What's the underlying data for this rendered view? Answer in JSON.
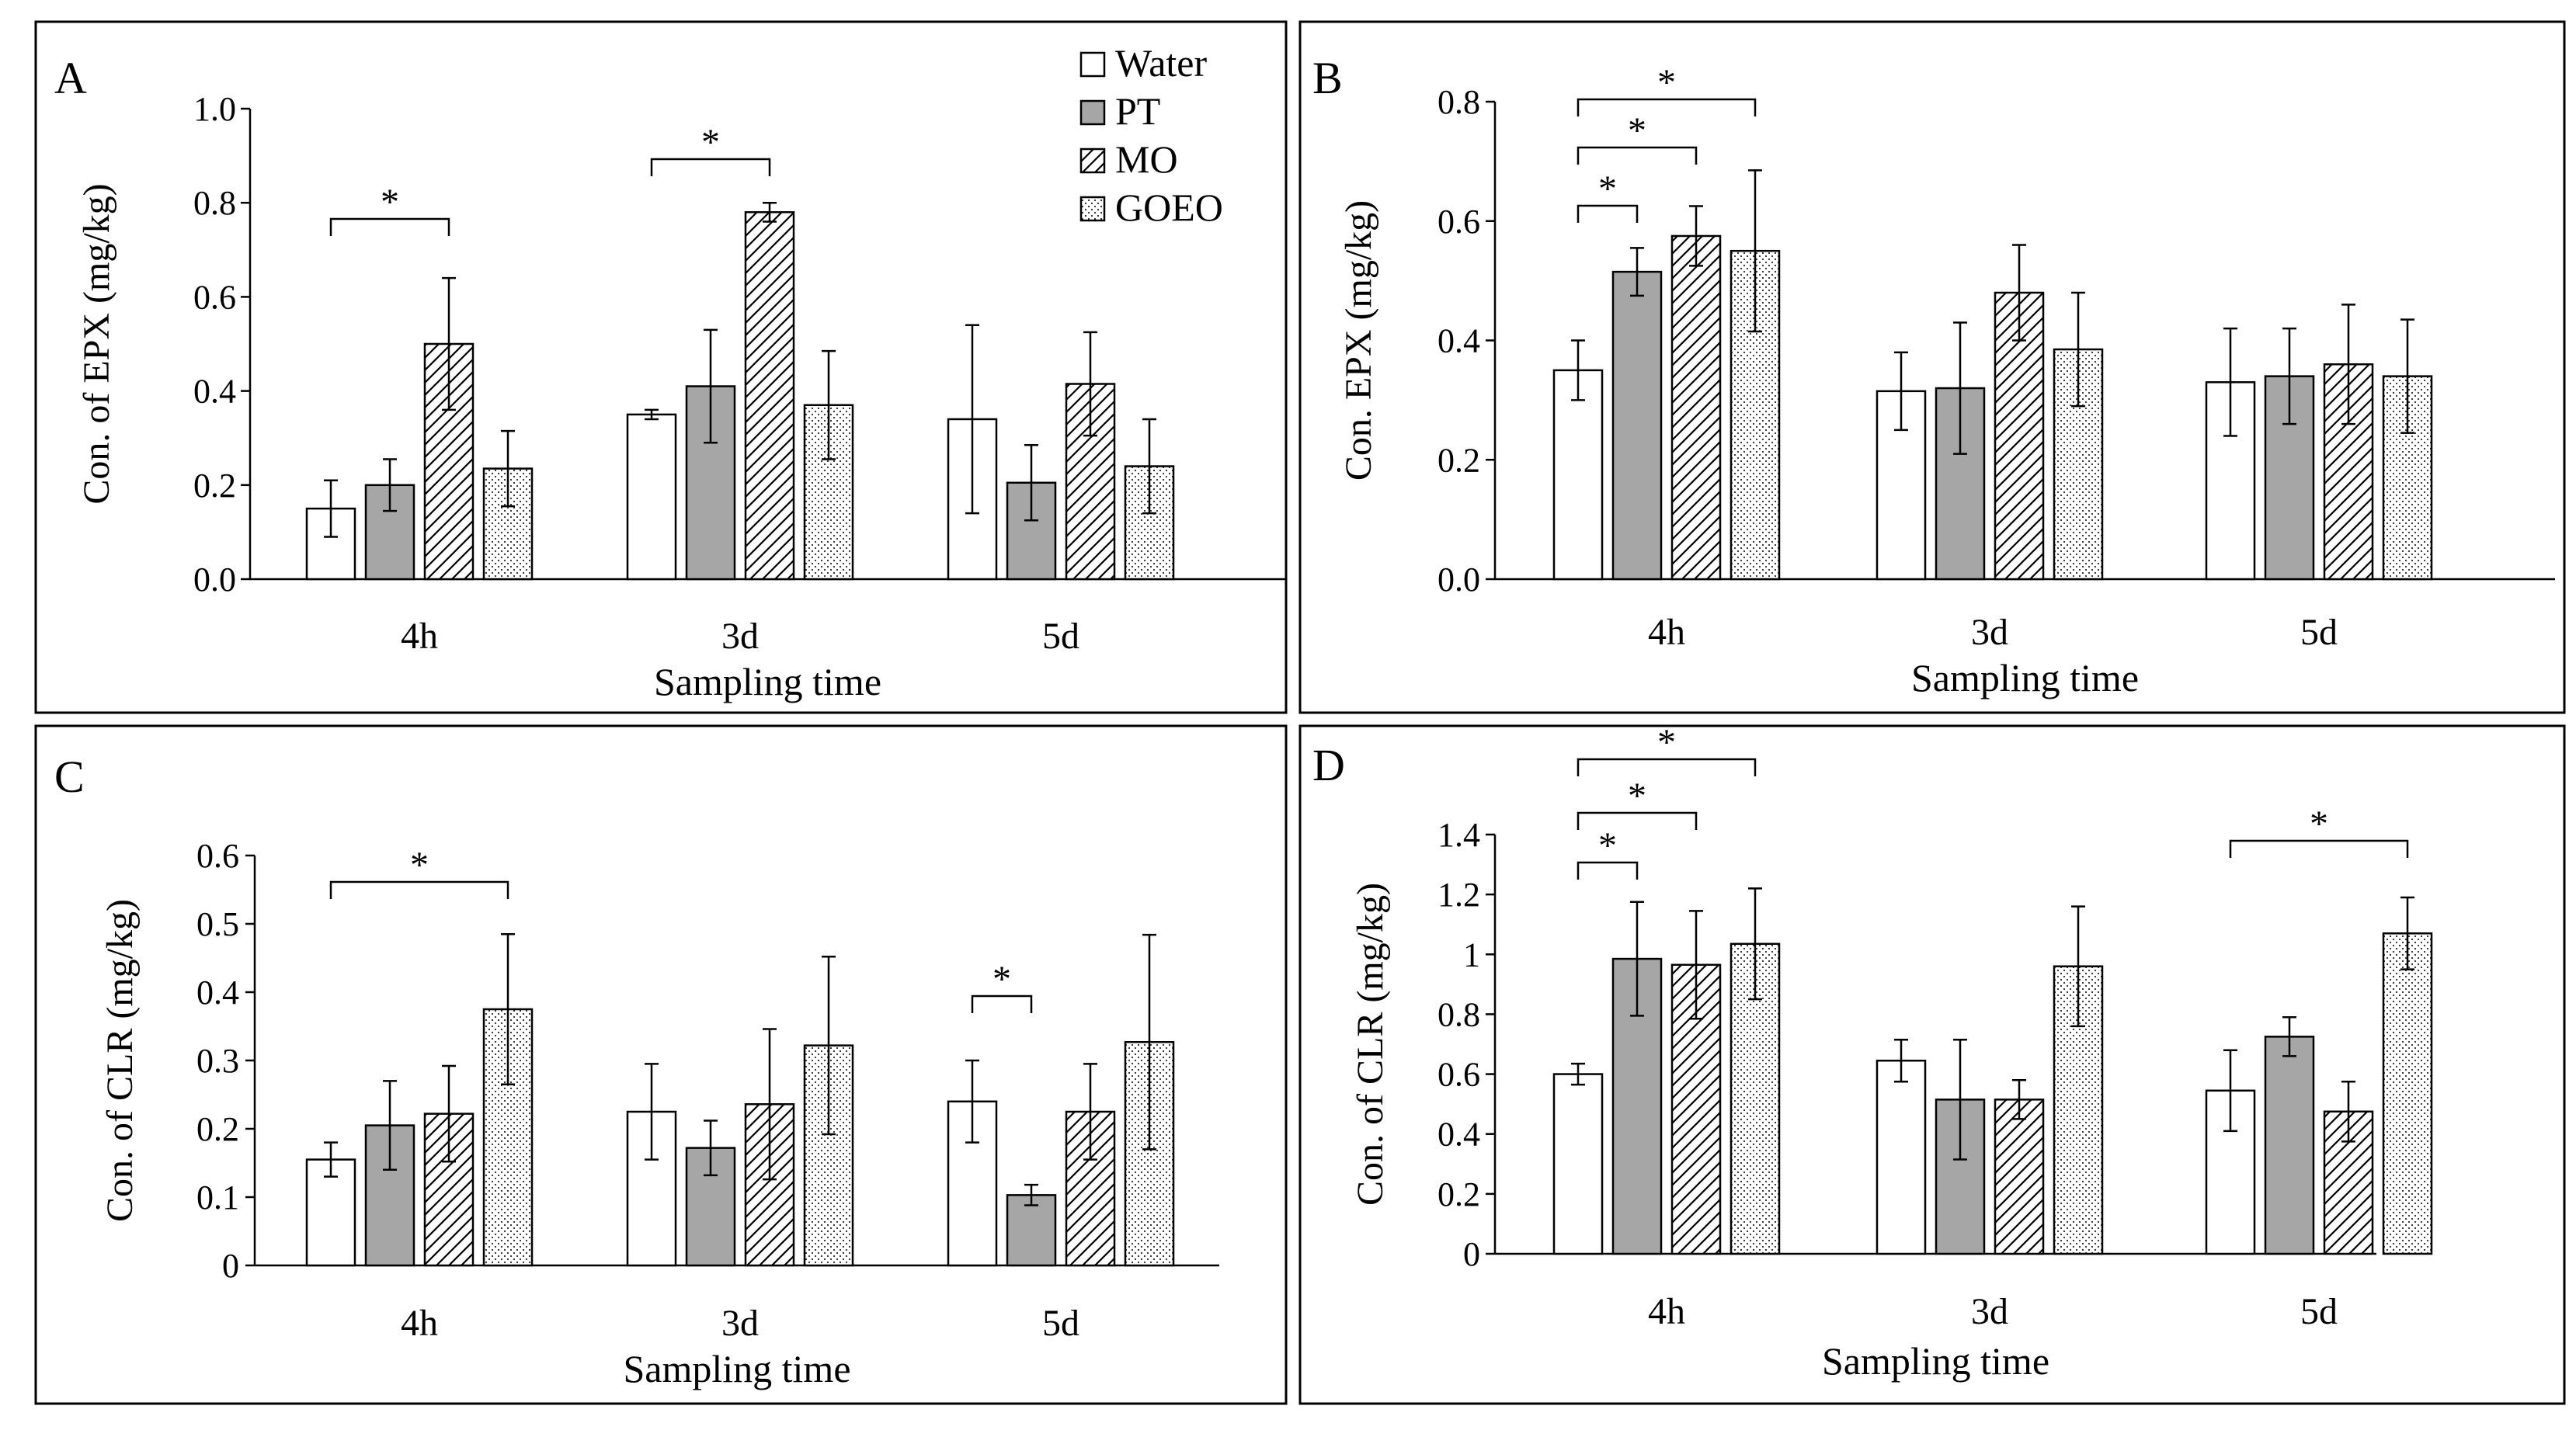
{
  "figure": {
    "series_names": [
      "Water",
      "PT",
      "MO",
      "GOEO"
    ],
    "colors": {
      "water": "#ffffff",
      "pt": "#a6a6a6",
      "ink": "#000000",
      "panel_border": "#000000"
    },
    "patterns": {
      "water": "solid-white",
      "pt": "solid-gray",
      "mo": "diagonal-hatch",
      "goeo": "dots"
    }
  },
  "chart_data": [
    {
      "id": "A",
      "type": "bar",
      "panel_label": "A",
      "title": "",
      "xlabel": "Sampling time",
      "ylabel": "Con. of EPX (mg/kg)",
      "categories": [
        "4h",
        "3d",
        "5d"
      ],
      "ylim": [
        0,
        1.0
      ],
      "yticks": [
        "0.0",
        "0.2",
        "0.4",
        "0.6",
        "0.8",
        "1.0"
      ],
      "legend": {
        "position": "top-right",
        "entries": [
          "Water",
          "PT",
          "MO",
          "GOEO"
        ]
      },
      "series": [
        {
          "name": "Water",
          "values": [
            0.15,
            0.35,
            0.34
          ],
          "errors": [
            0.06,
            0.01,
            0.2
          ]
        },
        {
          "name": "PT",
          "values": [
            0.2,
            0.41,
            0.205
          ],
          "errors": [
            0.055,
            0.12,
            0.08
          ]
        },
        {
          "name": "MO",
          "values": [
            0.5,
            0.78,
            0.415
          ],
          "errors": [
            0.14,
            0.02,
            0.11
          ]
        },
        {
          "name": "GOEO",
          "values": [
            0.235,
            0.37,
            0.24
          ],
          "errors": [
            0.08,
            0.115,
            0.1
          ]
        }
      ],
      "annotations": [
        {
          "category": 0,
          "from": 0,
          "to": 2,
          "label": "*"
        },
        {
          "category": 1,
          "from": 0,
          "to": 2,
          "label": "*"
        }
      ]
    },
    {
      "id": "B",
      "type": "bar",
      "panel_label": "B",
      "title": "",
      "xlabel": "Sampling time",
      "ylabel": "Con. EPX (mg/kg)",
      "categories": [
        "4h",
        "3d",
        "5d"
      ],
      "ylim": [
        0,
        0.8
      ],
      "yticks": [
        "0.0",
        "0.2",
        "0.4",
        "0.6",
        "0.8"
      ],
      "series": [
        {
          "name": "Water",
          "values": [
            0.35,
            0.315,
            0.33
          ],
          "errors": [
            0.05,
            0.065,
            0.09
          ]
        },
        {
          "name": "PT",
          "values": [
            0.515,
            0.32,
            0.34
          ],
          "errors": [
            0.04,
            0.11,
            0.08
          ]
        },
        {
          "name": "MO",
          "values": [
            0.575,
            0.48,
            0.36
          ],
          "errors": [
            0.05,
            0.08,
            0.1
          ]
        },
        {
          "name": "GOEO",
          "values": [
            0.55,
            0.385,
            0.34
          ],
          "errors": [
            0.135,
            0.095,
            0.095
          ]
        }
      ],
      "annotations": [
        {
          "category": 0,
          "from": 0,
          "to": 1,
          "label": "*"
        },
        {
          "category": 0,
          "from": 0,
          "to": 2,
          "label": "*"
        },
        {
          "category": 0,
          "from": 0,
          "to": 3,
          "label": "*"
        }
      ]
    },
    {
      "id": "C",
      "type": "bar",
      "panel_label": "C",
      "title": "",
      "xlabel": "Sampling time",
      "ylabel": "Con. of CLR (mg/kg)",
      "categories": [
        "4h",
        "3d",
        "5d"
      ],
      "ylim": [
        0,
        0.6
      ],
      "yticks": [
        "0",
        "0.1",
        "0.2",
        "0.3",
        "0.4",
        "0.5",
        "0.6"
      ],
      "series": [
        {
          "name": "Water",
          "values": [
            0.155,
            0.225,
            0.24
          ],
          "errors": [
            0.025,
            0.07,
            0.06
          ]
        },
        {
          "name": "PT",
          "values": [
            0.205,
            0.172,
            0.103
          ],
          "errors": [
            0.065,
            0.04,
            0.015
          ]
        },
        {
          "name": "MO",
          "values": [
            0.222,
            0.236,
            0.225
          ],
          "errors": [
            0.07,
            0.11,
            0.07
          ]
        },
        {
          "name": "GOEO",
          "values": [
            0.375,
            0.322,
            0.327
          ],
          "errors": [
            0.11,
            0.13,
            0.157
          ]
        }
      ],
      "annotations": [
        {
          "category": 0,
          "from": 0,
          "to": 3,
          "label": "*"
        },
        {
          "category": 2,
          "from": 0,
          "to": 1,
          "label": "*"
        }
      ]
    },
    {
      "id": "D",
      "type": "bar",
      "panel_label": "D",
      "title": "",
      "xlabel": "Sampling time",
      "ylabel": "Con. of CLR (mg/kg)",
      "categories": [
        "4h",
        "3d",
        "5d"
      ],
      "ylim": [
        0,
        1.4
      ],
      "yticks": [
        "0",
        "0.2",
        "0.4",
        "0.6",
        "0.8",
        "1",
        "1.2",
        "1.4"
      ],
      "series": [
        {
          "name": "Water",
          "values": [
            0.6,
            0.645,
            0.545
          ],
          "errors": [
            0.035,
            0.07,
            0.135
          ]
        },
        {
          "name": "PT",
          "values": [
            0.985,
            0.515,
            0.725
          ],
          "errors": [
            0.19,
            0.2,
            0.065
          ]
        },
        {
          "name": "MO",
          "values": [
            0.965,
            0.515,
            0.475
          ],
          "errors": [
            0.18,
            0.065,
            0.1
          ]
        },
        {
          "name": "GOEO",
          "values": [
            1.035,
            0.96,
            1.07
          ],
          "errors": [
            0.185,
            0.2,
            0.12
          ]
        }
      ],
      "annotations": [
        {
          "category": 0,
          "from": 0,
          "to": 1,
          "label": "*"
        },
        {
          "category": 0,
          "from": 0,
          "to": 2,
          "label": "*"
        },
        {
          "category": 0,
          "from": 0,
          "to": 3,
          "label": "*"
        },
        {
          "category": 2,
          "from": 0,
          "to": 3,
          "label": "*"
        }
      ]
    }
  ]
}
